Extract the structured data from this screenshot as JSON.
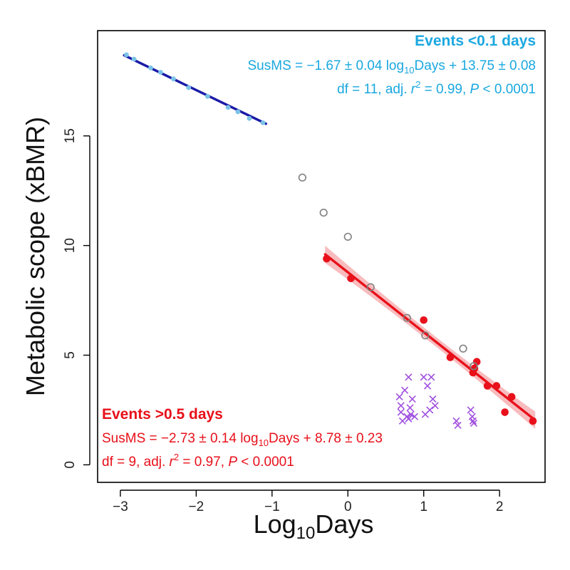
{
  "chart_data": {
    "type": "scatter",
    "xlabel": {
      "prefix": "Log",
      "sub": "10",
      "suffix": "Days"
    },
    "ylabel": "Metabolic scope (xBMR)",
    "xlim": [
      -3.3,
      2.6
    ],
    "ylim": [
      -0.8,
      19.8
    ],
    "xticks": [
      -3,
      -2,
      -1,
      0,
      1,
      2
    ],
    "xtick_labels": [
      "−3",
      "−2",
      "−1",
      "0",
      "1",
      "2"
    ],
    "yticks": [
      0,
      5,
      10,
      15
    ],
    "ytick_labels": [
      "0",
      "5",
      "10",
      "15"
    ],
    "grid": false,
    "colors": {
      "short_points": "#7dc3e8",
      "short_line": "#1a1aa8",
      "long": "#e8101a",
      "long_band": "#f5a5a8",
      "open": "#808080",
      "cross": "#a050e0",
      "short_text": "#1aa8e0"
    },
    "series": [
      {
        "marker": "filled-circle-small",
        "color": "#7dc3e8",
        "x": [
          -2.92,
          -2.82,
          -2.6,
          -2.47,
          -2.3,
          -2.1,
          -1.85,
          -1.58,
          -1.45,
          -1.3,
          -1.12
        ],
        "y": [
          18.7,
          18.5,
          18.1,
          17.9,
          17.6,
          17.2,
          16.8,
          16.3,
          16.1,
          15.8,
          15.6
        ]
      },
      {
        "marker": "filled-circle",
        "color": "#e8101a",
        "x": [
          -0.28,
          0.04,
          1.0,
          1.35,
          1.65,
          1.7,
          1.67,
          1.84,
          1.96,
          2.07,
          2.16,
          2.44
        ],
        "y": [
          9.4,
          8.5,
          6.6,
          4.9,
          4.2,
          4.7,
          4.4,
          3.6,
          3.6,
          2.4,
          3.1,
          2.0
        ]
      },
      {
        "marker": "open-circle",
        "color": "#808080",
        "x": [
          -0.6,
          -0.32,
          0.0,
          0.3,
          0.78,
          1.02,
          1.52,
          1.66
        ],
        "y": [
          13.1,
          11.5,
          10.4,
          8.1,
          6.7,
          5.9,
          5.3,
          4.5
        ]
      },
      {
        "marker": "cross",
        "color": "#a050e0",
        "x": [
          0.68,
          0.7,
          0.7,
          0.75,
          0.78,
          0.8,
          0.82,
          0.83,
          0.85,
          0.88,
          0.72,
          0.8,
          1.0,
          1.05,
          1.08,
          1.1,
          1.12,
          1.15,
          1.02,
          1.43,
          1.45,
          1.62,
          1.64,
          1.65,
          1.66
        ],
        "y": [
          3.1,
          2.7,
          2.4,
          3.4,
          2.2,
          4.0,
          2.6,
          2.3,
          3.0,
          2.2,
          2.0,
          2.1,
          4.0,
          3.6,
          2.5,
          4.0,
          3.0,
          2.7,
          2.3,
          2.0,
          1.8,
          2.5,
          2.2,
          2.0,
          1.9
        ]
      }
    ],
    "fits": [
      {
        "color": "#1a1aa8",
        "x_range": [
          -2.95,
          -1.08
        ],
        "slope": -1.67,
        "intercept": 13.75
      },
      {
        "color": "#e8101a",
        "band_color": "#f5a5a8",
        "x_range": [
          -0.3,
          2.47
        ],
        "slope": -2.73,
        "intercept": 8.78,
        "slope_se": 0.14,
        "intercept_se": 0.23
      }
    ],
    "annotations": {
      "short": {
        "title": "Events <0.1 days",
        "eq_a": "SusMS = −1.67 ± 0.04 log",
        "eq_sub": "10",
        "eq_b": "Days + 13.75 ± 0.08",
        "stats_a": "df = 11, adj. ",
        "stats_r": "r",
        "stats_sup": "2",
        "stats_b": " = 0.99, ",
        "stats_p": "P",
        "stats_c": " < 0.0001"
      },
      "long": {
        "title": "Events >0.5 days",
        "eq_a": "SusMS = −2.73 ± 0.14 log",
        "eq_sub": "10",
        "eq_b": "Days + 8.78 ± 0.23",
        "stats_a": "df = 9, adj. ",
        "stats_r": "r",
        "stats_sup": "2",
        "stats_b": " = 0.97, ",
        "stats_p": "P",
        "stats_c": " < 0.0001"
      }
    }
  }
}
